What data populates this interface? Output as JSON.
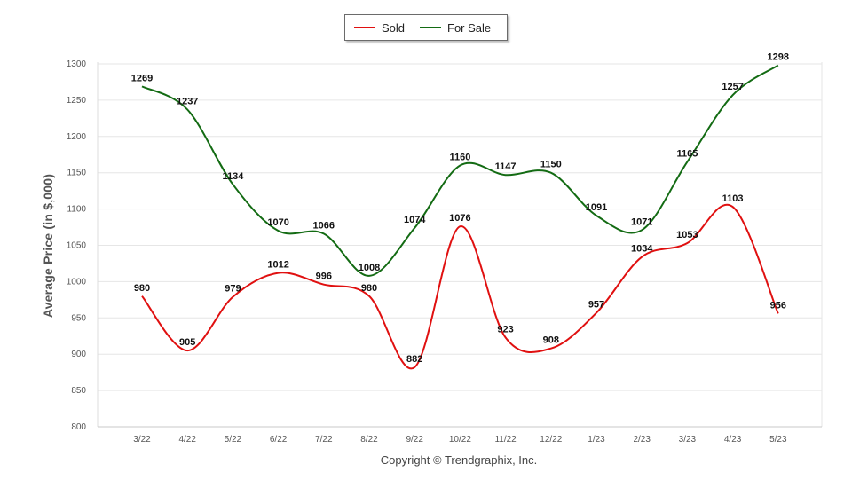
{
  "chart_data": {
    "type": "line",
    "categories": [
      "3/22",
      "4/22",
      "5/22",
      "6/22",
      "7/22",
      "8/22",
      "9/22",
      "10/22",
      "11/22",
      "12/22",
      "1/23",
      "2/23",
      "3/23",
      "4/23",
      "5/23"
    ],
    "series": [
      {
        "name": "Sold",
        "color": "#e01010",
        "values": [
          980,
          905,
          979,
          1012,
          996,
          980,
          882,
          1076,
          923,
          908,
          957,
          1034,
          1053,
          1103,
          956
        ]
      },
      {
        "name": "For Sale",
        "color": "#136b13",
        "values": [
          1269,
          1237,
          1134,
          1070,
          1066,
          1008,
          1074,
          1160,
          1147,
          1150,
          1091,
          1071,
          1165,
          1257,
          1298
        ]
      }
    ],
    "ylabel": "Average Price (in $,000)",
    "xlabel": "",
    "ylim": [
      800,
      1300
    ],
    "yticks": [
      800,
      850,
      900,
      950,
      1000,
      1050,
      1100,
      1150,
      1200,
      1250,
      1300
    ],
    "grid": true,
    "legend_position": "top-center"
  },
  "footer": {
    "copyright": "Copyright © Trendgraphix, Inc."
  }
}
